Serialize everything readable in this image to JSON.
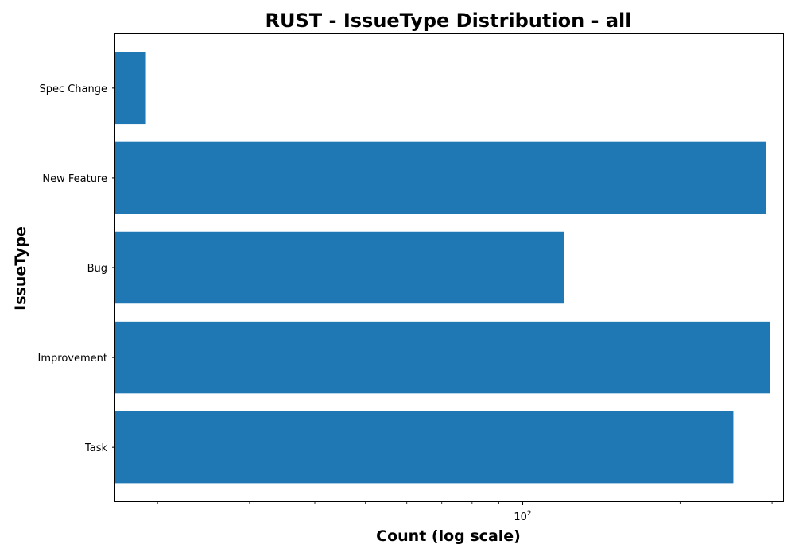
{
  "chart_data": {
    "type": "bar",
    "orientation": "horizontal",
    "title": "RUST - IssueType Distribution - all",
    "xlabel": "Count (log scale)",
    "ylabel": "IssueType",
    "x_scale": "log",
    "xlim": [
      16.6,
      315
    ],
    "x_ticks": [
      {
        "value": 100,
        "base": "10",
        "exponent": "2"
      }
    ],
    "x_minor_ticks": [
      20,
      30,
      40,
      50,
      60,
      70,
      80,
      90,
      200,
      300
    ],
    "categories": [
      "Task",
      "Improvement",
      "Bug",
      "New Feature",
      "Spec Change"
    ],
    "values": [
      253,
      297,
      120,
      292,
      19
    ],
    "bar_color": "#1f77b4",
    "grid": false,
    "legend": "none"
  }
}
